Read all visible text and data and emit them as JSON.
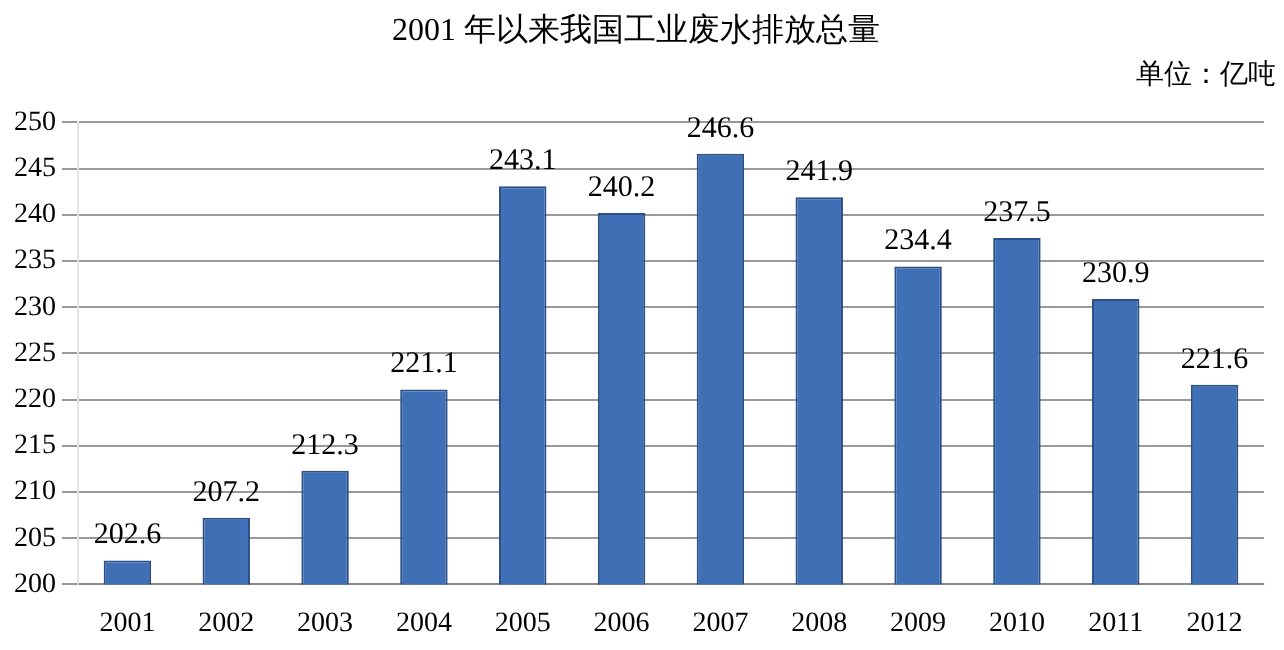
{
  "chart_data": {
    "type": "bar",
    "title": "2001 年以来我国工业废水排放总量",
    "annotations": [
      "单位：亿吨"
    ],
    "categories": [
      "2001",
      "2002",
      "2003",
      "2004",
      "2005",
      "2006",
      "2007",
      "2008",
      "2009",
      "2010",
      "2011",
      "2012"
    ],
    "values": [
      202.6,
      207.2,
      212.3,
      221.1,
      243.1,
      240.2,
      246.6,
      241.9,
      234.4,
      237.5,
      230.9,
      221.6
    ],
    "color": "#3f6fb5",
    "ylim": [
      200,
      250
    ],
    "yticks": [
      200,
      205,
      210,
      215,
      220,
      225,
      230,
      235,
      240,
      245,
      250
    ],
    "grid": "y",
    "data_labels": true,
    "legend": false
  }
}
